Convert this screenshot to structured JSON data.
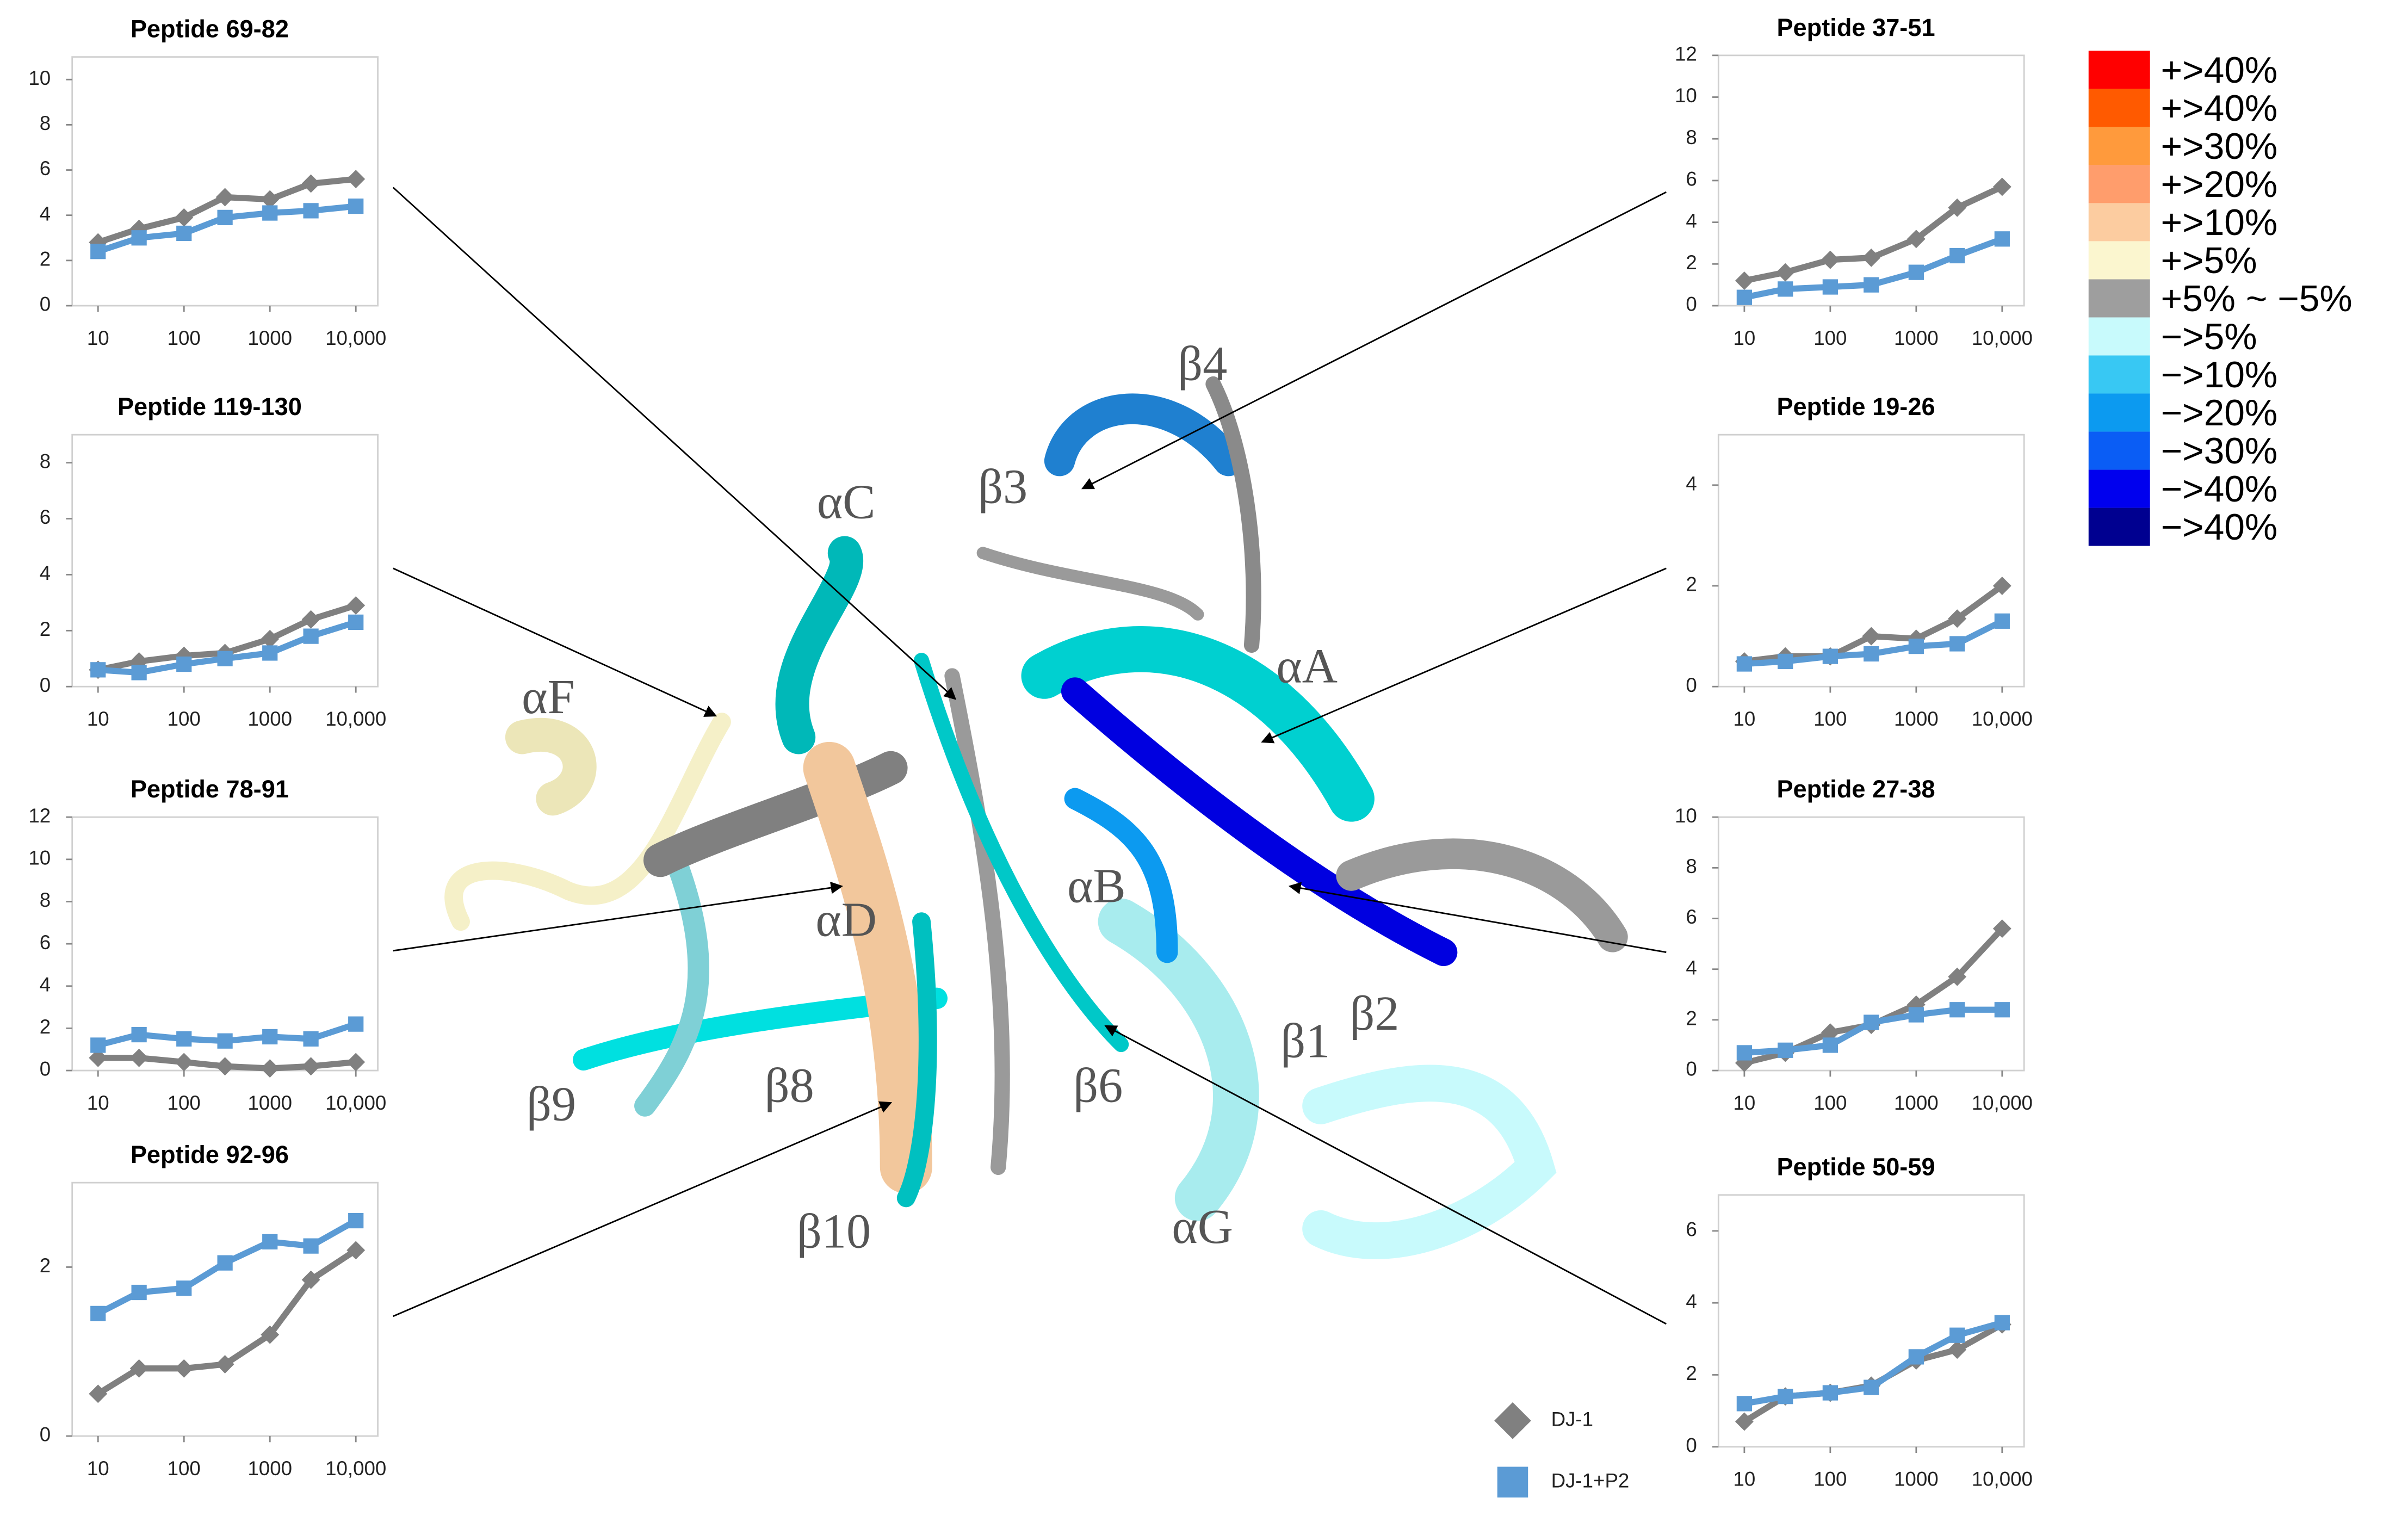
{
  "chart_data": [
    {
      "type": "line",
      "title": "Peptide 69-82",
      "xscale": "log",
      "x": [
        10,
        30,
        100,
        300,
        1000,
        3000,
        10000
      ],
      "xlim": [
        5,
        18000
      ],
      "xticks": [
        10,
        100,
        1000,
        {
          "value": 10000,
          "label": "10,000"
        }
      ],
      "ylim": [
        0,
        11
      ],
      "yticks": [
        0,
        2,
        4,
        6,
        8,
        10
      ],
      "series": [
        {
          "name": "DJ-1",
          "color": "#808080",
          "marker": "diamond",
          "values": [
            2.8,
            3.4,
            3.9,
            4.8,
            4.7,
            5.4,
            5.6
          ]
        },
        {
          "name": "DJ-1+P2",
          "color": "#5b9bd5",
          "marker": "square",
          "values": [
            2.4,
            3.0,
            3.2,
            3.9,
            4.1,
            4.2,
            4.4
          ]
        }
      ]
    },
    {
      "type": "line",
      "title": "Peptide 37-51",
      "xscale": "log",
      "x": [
        10,
        30,
        100,
        300,
        1000,
        3000,
        10000
      ],
      "xlim": [
        5,
        18000
      ],
      "xticks": [
        10,
        100,
        1000,
        {
          "value": 10000,
          "label": "10,000"
        }
      ],
      "ylim": [
        0,
        12
      ],
      "yticks": [
        0,
        2,
        4,
        6,
        8,
        10,
        12
      ],
      "series": [
        {
          "name": "DJ-1",
          "color": "#808080",
          "marker": "diamond",
          "values": [
            1.2,
            1.6,
            2.2,
            2.3,
            3.2,
            4.7,
            5.7
          ]
        },
        {
          "name": "DJ-1+P2",
          "color": "#5b9bd5",
          "marker": "square",
          "values": [
            0.4,
            0.8,
            0.9,
            1.0,
            1.6,
            2.4,
            3.2
          ]
        }
      ]
    },
    {
      "type": "line",
      "title": "Peptide 119-130",
      "xscale": "log",
      "x": [
        10,
        30,
        100,
        300,
        1000,
        3000,
        10000
      ],
      "xlim": [
        5,
        18000
      ],
      "xticks": [
        10,
        100,
        1000,
        {
          "value": 10000,
          "label": "10,000"
        }
      ],
      "ylim": [
        0,
        9
      ],
      "yticks": [
        0,
        2,
        4,
        6,
        8
      ],
      "series": [
        {
          "name": "DJ-1",
          "color": "#808080",
          "marker": "diamond",
          "values": [
            0.6,
            0.9,
            1.1,
            1.2,
            1.7,
            2.4,
            2.9
          ]
        },
        {
          "name": "DJ-1+P2",
          "color": "#5b9bd5",
          "marker": "square",
          "values": [
            0.6,
            0.5,
            0.8,
            1.0,
            1.2,
            1.8,
            2.3
          ]
        }
      ]
    },
    {
      "type": "line",
      "title": "Peptide 19-26",
      "xscale": "log",
      "x": [
        10,
        30,
        100,
        300,
        1000,
        3000,
        10000
      ],
      "xlim": [
        5,
        18000
      ],
      "xticks": [
        10,
        100,
        1000,
        {
          "value": 10000,
          "label": "10,000"
        }
      ],
      "ylim": [
        0,
        5
      ],
      "yticks": [
        0,
        2,
        4
      ],
      "series": [
        {
          "name": "DJ-1",
          "color": "#808080",
          "marker": "diamond",
          "values": [
            0.5,
            0.6,
            0.6,
            1.0,
            0.95,
            1.35,
            2.0
          ]
        },
        {
          "name": "DJ-1+P2",
          "color": "#5b9bd5",
          "marker": "square",
          "values": [
            0.45,
            0.5,
            0.6,
            0.65,
            0.8,
            0.85,
            1.3
          ]
        }
      ]
    },
    {
      "type": "line",
      "title": "Peptide 78-91",
      "xscale": "log",
      "x": [
        10,
        30,
        100,
        300,
        1000,
        3000,
        10000
      ],
      "xlim": [
        5,
        18000
      ],
      "xticks": [
        10,
        100,
        1000,
        {
          "value": 10000,
          "label": "10,000"
        }
      ],
      "ylim": [
        0,
        12
      ],
      "yticks": [
        0,
        2,
        4,
        6,
        8,
        10,
        12
      ],
      "series": [
        {
          "name": "DJ-1",
          "color": "#808080",
          "marker": "diamond",
          "values": [
            0.6,
            0.6,
            0.4,
            0.2,
            0.1,
            0.2,
            0.4
          ]
        },
        {
          "name": "DJ-1+P2",
          "color": "#5b9bd5",
          "marker": "square",
          "values": [
            1.2,
            1.7,
            1.5,
            1.4,
            1.6,
            1.5,
            2.2
          ]
        }
      ]
    },
    {
      "type": "line",
      "title": "Peptide 27-38",
      "xscale": "log",
      "x": [
        10,
        30,
        100,
        300,
        1000,
        3000,
        10000
      ],
      "xlim": [
        5,
        18000
      ],
      "xticks": [
        10,
        100,
        1000,
        {
          "value": 10000,
          "label": "10,000"
        }
      ],
      "ylim": [
        0,
        10
      ],
      "yticks": [
        0,
        2,
        4,
        6,
        8,
        10
      ],
      "series": [
        {
          "name": "DJ-1",
          "color": "#808080",
          "marker": "diamond",
          "values": [
            0.3,
            0.7,
            1.5,
            1.8,
            2.6,
            3.7,
            5.6
          ]
        },
        {
          "name": "DJ-1+P2",
          "color": "#5b9bd5",
          "marker": "square",
          "values": [
            0.7,
            0.8,
            1.0,
            1.9,
            2.2,
            2.4,
            2.4
          ]
        }
      ]
    },
    {
      "type": "line",
      "title": "Peptide 92-96",
      "xscale": "log",
      "x": [
        10,
        30,
        100,
        300,
        1000,
        3000,
        10000
      ],
      "xlim": [
        5,
        18000
      ],
      "xticks": [
        10,
        100,
        1000,
        {
          "value": 10000,
          "label": "10,000"
        }
      ],
      "ylim": [
        0,
        3
      ],
      "yticks": [
        0,
        2
      ],
      "series": [
        {
          "name": "DJ-1",
          "color": "#808080",
          "marker": "diamond",
          "values": [
            0.5,
            0.8,
            0.8,
            0.85,
            1.2,
            1.85,
            2.2
          ]
        },
        {
          "name": "DJ-1+P2",
          "color": "#5b9bd5",
          "marker": "square",
          "values": [
            1.45,
            1.7,
            1.75,
            2.05,
            2.3,
            2.25,
            2.55
          ]
        }
      ]
    },
    {
      "type": "line",
      "title": "Peptide 50-59",
      "xscale": "log",
      "x": [
        10,
        30,
        100,
        300,
        1000,
        3000,
        10000
      ],
      "xlim": [
        5,
        18000
      ],
      "xticks": [
        10,
        100,
        1000,
        {
          "value": 10000,
          "label": "10,000"
        }
      ],
      "ylim": [
        0,
        7
      ],
      "yticks": [
        0,
        2,
        4,
        6
      ],
      "series": [
        {
          "name": "DJ-1",
          "color": "#808080",
          "marker": "diamond",
          "values": [
            0.7,
            1.4,
            1.5,
            1.7,
            2.4,
            2.7,
            3.4
          ]
        },
        {
          "name": "DJ-1+P2",
          "color": "#5b9bd5",
          "marker": "square",
          "values": [
            1.2,
            1.4,
            1.5,
            1.65,
            2.5,
            3.1,
            3.45
          ]
        }
      ]
    }
  ],
  "color_scale": [
    {
      "label": "+>40%",
      "color": "#ff0000"
    },
    {
      "label": "+>40%",
      "color": "#ff5a00"
    },
    {
      "label": "+>30%",
      "color": "#ff9a3c"
    },
    {
      "label": "+>20%",
      "color": "#ff9d6c"
    },
    {
      "label": "+>10%",
      "color": "#fccca0"
    },
    {
      "label": "+>5%",
      "color": "#fbf6cf"
    },
    {
      "label": "+5% ~ −5%",
      "color": "#9e9e9e"
    },
    {
      "label": "−>5%",
      "color": "#c8fafc"
    },
    {
      "label": "−>10%",
      "color": "#38c8f3"
    },
    {
      "label": "−>20%",
      "color": "#0c9af0"
    },
    {
      "label": "−>30%",
      "color": "#0a5df5"
    },
    {
      "label": "−>40%",
      "color": "#0000ee"
    },
    {
      "label": "−>40%",
      "color": "#000090"
    }
  ],
  "structure_labels": [
    "αC",
    "β3",
    "β4",
    "αF",
    "αA",
    "αD",
    "αB",
    "β9",
    "β8",
    "β6",
    "β1",
    "β2",
    "β10",
    "αG"
  ]
}
